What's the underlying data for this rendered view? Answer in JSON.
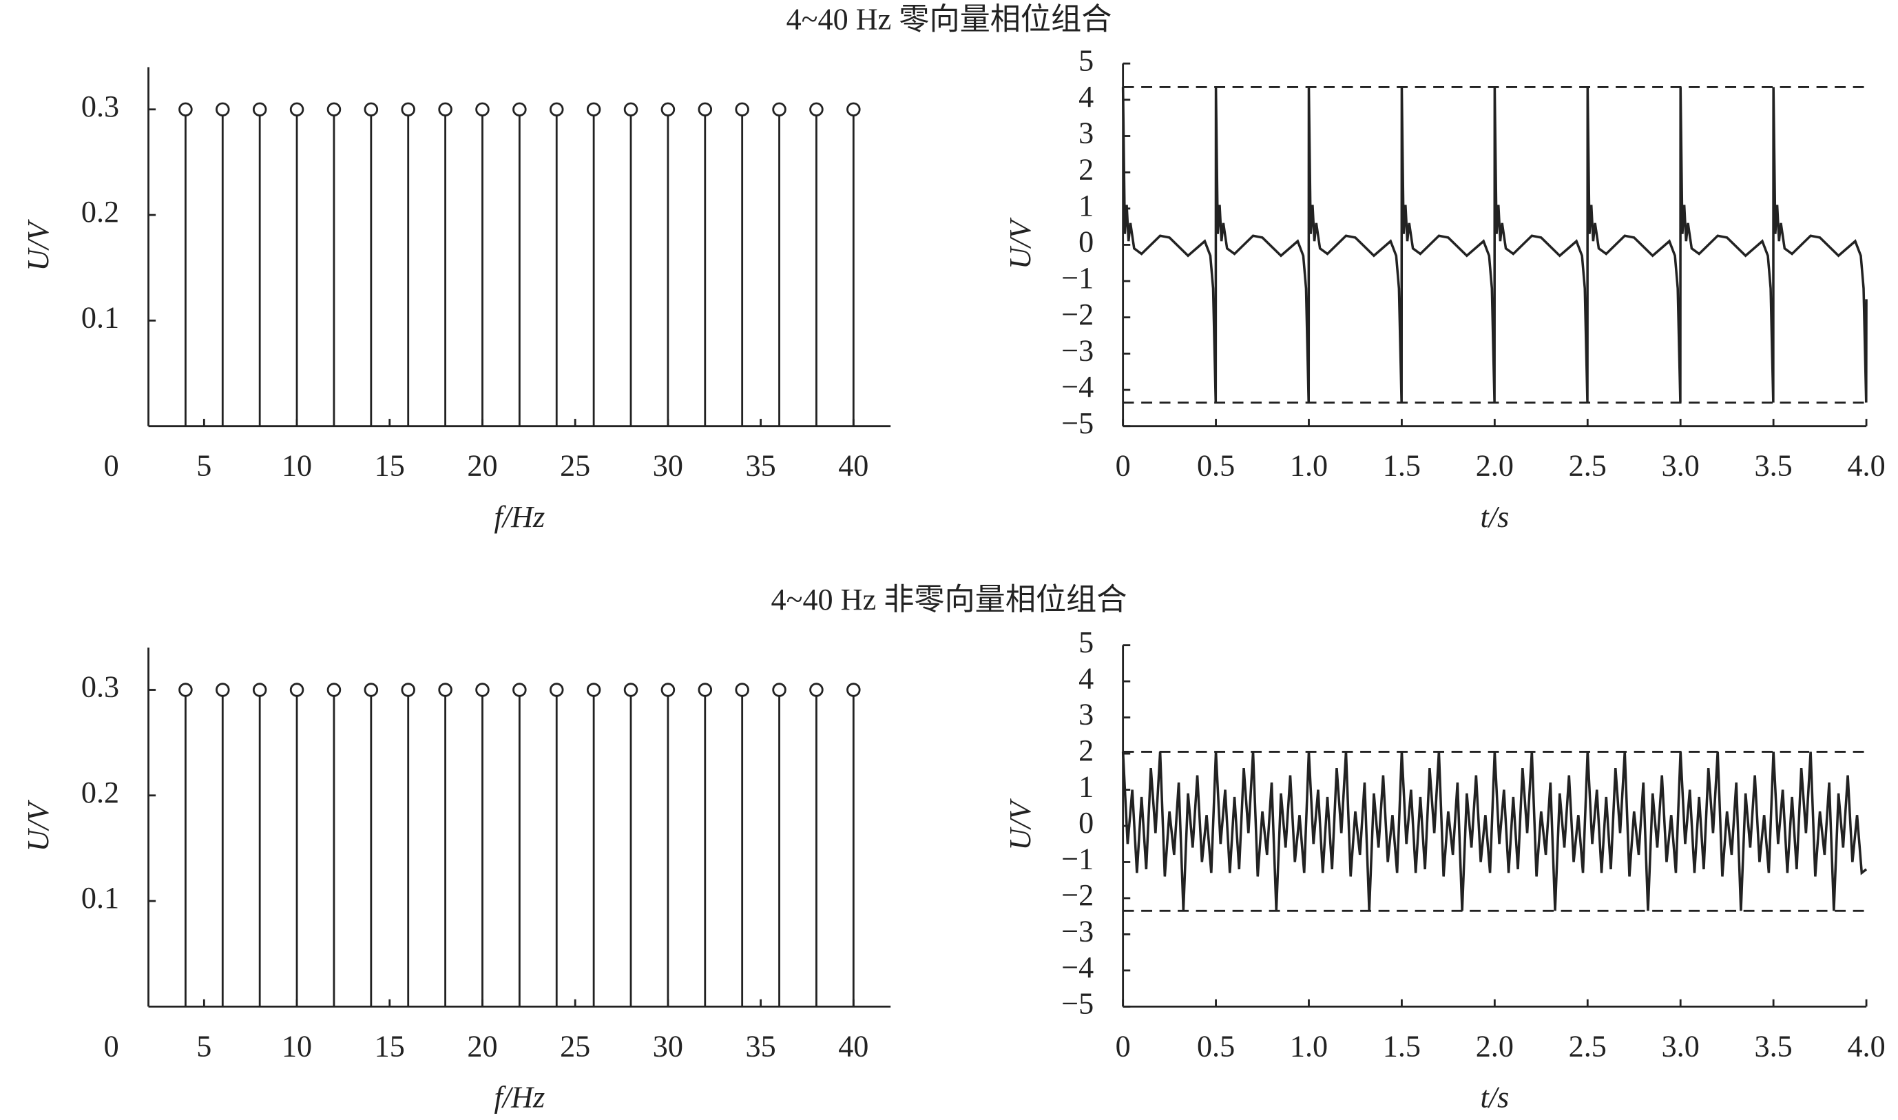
{
  "chart_data": [
    {
      "type": "stem",
      "title": "4~40 Hz 零向量相位组合",
      "xlabel": "f/Hz",
      "ylabel": "U/V",
      "color": "#222222",
      "x": [
        4,
        6,
        8,
        10,
        12,
        14,
        16,
        18,
        20,
        22,
        24,
        26,
        28,
        30,
        32,
        34,
        36,
        38,
        40
      ],
      "values": [
        0.3,
        0.3,
        0.3,
        0.3,
        0.3,
        0.3,
        0.3,
        0.3,
        0.3,
        0.3,
        0.3,
        0.3,
        0.3,
        0.3,
        0.3,
        0.3,
        0.3,
        0.3,
        0.3
      ],
      "xlim": [
        2,
        42
      ],
      "xticks": [
        0,
        5,
        10,
        15,
        20,
        25,
        30,
        35,
        40
      ],
      "ylim": [
        0,
        0.34
      ],
      "yticks": [
        0.1,
        0.2,
        0.3
      ]
    },
    {
      "type": "line",
      "xlabel": "t/s",
      "ylabel": "U/V",
      "color": "#222222",
      "x": [
        0,
        0.01,
        0.02,
        0.03,
        0.04,
        0.06,
        0.1,
        0.2,
        0.25,
        0.35,
        0.44,
        0.47,
        0.485,
        0.499,
        0.5,
        0.51,
        0.52,
        0.53,
        0.54,
        0.56,
        0.6,
        0.7,
        0.75,
        0.85,
        0.94,
        0.97,
        0.985,
        0.999,
        1,
        1.01,
        1.02,
        1.03,
        1.04,
        1.06,
        1.1,
        1.2,
        1.25,
        1.35,
        1.44,
        1.47,
        1.485,
        1.499,
        1.5,
        1.51,
        1.52,
        1.53,
        1.54,
        1.56,
        1.6,
        1.7,
        1.75,
        1.85,
        1.94,
        1.97,
        1.985,
        1.999,
        2,
        2.01,
        2.02,
        2.03,
        2.04,
        2.06,
        2.1,
        2.2,
        2.25,
        2.35,
        2.44,
        2.47,
        2.485,
        2.499,
        2.5,
        2.51,
        2.52,
        2.53,
        2.54,
        2.56,
        2.6,
        2.7,
        2.75,
        2.85,
        2.94,
        2.97,
        2.985,
        2.999,
        3,
        3.01,
        3.02,
        3.03,
        3.04,
        3.06,
        3.1,
        3.2,
        3.25,
        3.35,
        3.44,
        3.47,
        3.485,
        3.499,
        3.5,
        3.51,
        3.52,
        3.53,
        3.54,
        3.56,
        3.6,
        3.7,
        3.75,
        3.85,
        3.94,
        3.97,
        3.985,
        3.999,
        4
      ],
      "values": [
        4.35,
        0.3,
        1.1,
        0.1,
        0.6,
        -0.1,
        -0.25,
        0.25,
        0.2,
        -0.3,
        0.1,
        -0.3,
        -1.2,
        -4.35,
        4.35,
        0.3,
        1.1,
        0.1,
        0.6,
        -0.1,
        -0.25,
        0.25,
        0.2,
        -0.3,
        0.1,
        -0.3,
        -1.2,
        -4.35,
        4.35,
        0.3,
        1.1,
        0.1,
        0.6,
        -0.1,
        -0.25,
        0.25,
        0.2,
        -0.3,
        0.1,
        -0.3,
        -1.2,
        -4.35,
        4.35,
        0.3,
        1.1,
        0.1,
        0.6,
        -0.1,
        -0.25,
        0.25,
        0.2,
        -0.3,
        0.1,
        -0.3,
        -1.2,
        -4.35,
        4.35,
        0.3,
        1.1,
        0.1,
        0.6,
        -0.1,
        -0.25,
        0.25,
        0.2,
        -0.3,
        0.1,
        -0.3,
        -1.2,
        -4.35,
        4.35,
        0.3,
        1.1,
        0.1,
        0.6,
        -0.1,
        -0.25,
        0.25,
        0.2,
        -0.3,
        0.1,
        -0.3,
        -1.2,
        -4.35,
        4.35,
        0.3,
        1.1,
        0.1,
        0.6,
        -0.1,
        -0.25,
        0.25,
        0.2,
        -0.3,
        0.1,
        -0.3,
        -1.2,
        -4.35,
        4.35,
        0.3,
        1.1,
        0.1,
        0.6,
        -0.1,
        -0.25,
        0.25,
        0.2,
        -0.3,
        0.1,
        -0.3,
        -1.2,
        -4.35,
        -1.5
      ],
      "hlines": [
        4.35,
        -4.35
      ],
      "xlim": [
        0,
        4
      ],
      "xticks": [
        0,
        0.5,
        {
          "value": 1,
          "label": "1.0"
        },
        1.5,
        {
          "value": 2,
          "label": "2.0"
        },
        2.5,
        {
          "value": 3,
          "label": "3.0"
        },
        3.5,
        {
          "value": 4,
          "label": "4.0"
        }
      ],
      "ylim": [
        -5,
        5
      ],
      "yticks": [
        {
          "value": -5,
          "label": "−5"
        },
        {
          "value": -4,
          "label": "−4"
        },
        {
          "value": -3,
          "label": "−3"
        },
        {
          "value": -2,
          "label": "−2"
        },
        {
          "value": -1,
          "label": "−1"
        },
        0,
        1,
        2,
        3,
        4,
        5
      ]
    },
    {
      "type": "stem",
      "title": "4~40 Hz 非零向量相位组合",
      "xlabel": "f/Hz",
      "ylabel": "U/V",
      "color": "#222222",
      "x": [
        4,
        6,
        8,
        10,
        12,
        14,
        16,
        18,
        20,
        22,
        24,
        26,
        28,
        30,
        32,
        34,
        36,
        38,
        40
      ],
      "values": [
        0.3,
        0.3,
        0.3,
        0.3,
        0.3,
        0.3,
        0.3,
        0.3,
        0.3,
        0.3,
        0.3,
        0.3,
        0.3,
        0.3,
        0.3,
        0.3,
        0.3,
        0.3,
        0.3
      ],
      "xlim": [
        2,
        42
      ],
      "xticks": [
        0,
        5,
        10,
        15,
        20,
        25,
        30,
        35,
        40
      ],
      "ylim": [
        0,
        0.34
      ],
      "yticks": [
        0.1,
        0.2,
        0.3
      ]
    },
    {
      "type": "line",
      "xlabel": "t/s",
      "ylabel": "U/V",
      "color": "#222222",
      "x": [
        0,
        0.025,
        0.05,
        0.075,
        0.1,
        0.125,
        0.15,
        0.175,
        0.2,
        0.225,
        0.25,
        0.275,
        0.3,
        0.325,
        0.35,
        0.375,
        0.4,
        0.425,
        0.45,
        0.475,
        0.5,
        0.525,
        0.55,
        0.575,
        0.6,
        0.625,
        0.65,
        0.675,
        0.7,
        0.725,
        0.75,
        0.775,
        0.8,
        0.825,
        0.85,
        0.875,
        0.9,
        0.925,
        0.95,
        0.975,
        1,
        1.025,
        1.05,
        1.075,
        1.1,
        1.125,
        1.15,
        1.175,
        1.2,
        1.225,
        1.25,
        1.275,
        1.3,
        1.325,
        1.35,
        1.375,
        1.4,
        1.425,
        1.45,
        1.475,
        1.5,
        1.525,
        1.55,
        1.575,
        1.6,
        1.625,
        1.65,
        1.675,
        1.7,
        1.725,
        1.75,
        1.775,
        1.8,
        1.825,
        1.85,
        1.875,
        1.9,
        1.925,
        1.95,
        1.975,
        2,
        2.025,
        2.05,
        2.075,
        2.1,
        2.125,
        2.15,
        2.175,
        2.2,
        2.225,
        2.25,
        2.275,
        2.3,
        2.325,
        2.35,
        2.375,
        2.4,
        2.425,
        2.45,
        2.475,
        2.5,
        2.525,
        2.55,
        2.575,
        2.6,
        2.625,
        2.65,
        2.675,
        2.7,
        2.725,
        2.75,
        2.775,
        2.8,
        2.825,
        2.85,
        2.875,
        2.9,
        2.925,
        2.95,
        2.975,
        3,
        3.025,
        3.05,
        3.075,
        3.1,
        3.125,
        3.15,
        3.175,
        3.2,
        3.225,
        3.25,
        3.275,
        3.3,
        3.325,
        3.35,
        3.375,
        3.4,
        3.425,
        3.45,
        3.475,
        3.5,
        3.525,
        3.55,
        3.575,
        3.6,
        3.625,
        3.65,
        3.675,
        3.7,
        3.725,
        3.75,
        3.775,
        3.8,
        3.825,
        3.85,
        3.875,
        3.9,
        3.925,
        3.95,
        3.975,
        4
      ],
      "values": [
        2.05,
        -0.5,
        1.0,
        -1.3,
        0.8,
        -1.2,
        1.6,
        -0.2,
        2.05,
        -1.4,
        0.4,
        -0.8,
        1.2,
        -2.35,
        0.9,
        -0.6,
        1.4,
        -1.0,
        0.3,
        -1.3,
        2.05,
        -0.5,
        1.0,
        -1.3,
        0.8,
        -1.2,
        1.6,
        -0.2,
        2.05,
        -1.4,
        0.4,
        -0.8,
        1.2,
        -2.35,
        0.9,
        -0.6,
        1.4,
        -1.0,
        0.3,
        -1.3,
        2.05,
        -0.5,
        1.0,
        -1.3,
        0.8,
        -1.2,
        1.6,
        -0.2,
        2.05,
        -1.4,
        0.4,
        -0.8,
        1.2,
        -2.35,
        0.9,
        -0.6,
        1.4,
        -1.0,
        0.3,
        -1.3,
        2.05,
        -0.5,
        1.0,
        -1.3,
        0.8,
        -1.2,
        1.6,
        -0.2,
        2.05,
        -1.4,
        0.4,
        -0.8,
        1.2,
        -2.35,
        0.9,
        -0.6,
        1.4,
        -1.0,
        0.3,
        -1.3,
        2.05,
        -0.5,
        1.0,
        -1.3,
        0.8,
        -1.2,
        1.6,
        -0.2,
        2.05,
        -1.4,
        0.4,
        -0.8,
        1.2,
        -2.35,
        0.9,
        -0.6,
        1.4,
        -1.0,
        0.3,
        -1.3,
        2.05,
        -0.5,
        1.0,
        -1.3,
        0.8,
        -1.2,
        1.6,
        -0.2,
        2.05,
        -1.4,
        0.4,
        -0.8,
        1.2,
        -2.35,
        0.9,
        -0.6,
        1.4,
        -1.0,
        0.3,
        -1.3,
        2.05,
        -0.5,
        1.0,
        -1.3,
        0.8,
        -1.2,
        1.6,
        -0.2,
        2.05,
        -1.4,
        0.4,
        -0.8,
        1.2,
        -2.35,
        0.9,
        -0.6,
        1.4,
        -1.0,
        0.3,
        -1.3,
        2.05,
        -0.5,
        1.0,
        -1.3,
        0.8,
        -1.2,
        1.6,
        -0.2,
        2.05,
        -1.4,
        0.4,
        -0.8,
        1.2,
        -2.35,
        0.9,
        -0.6,
        1.4,
        -1.0,
        0.3,
        -1.3,
        -1.2
      ],
      "hlines": [
        2.05,
        -2.35
      ],
      "xlim": [
        0,
        4
      ],
      "xticks": [
        0,
        0.5,
        {
          "value": 1,
          "label": "1.0"
        },
        1.5,
        {
          "value": 2,
          "label": "2.0"
        },
        2.5,
        {
          "value": 3,
          "label": "3.0"
        },
        3.5,
        {
          "value": 4,
          "label": "4.0"
        }
      ],
      "ylim": [
        -5,
        5
      ],
      "yticks": [
        {
          "value": -5,
          "label": "−5"
        },
        {
          "value": -4,
          "label": "−4"
        },
        {
          "value": -3,
          "label": "−3"
        },
        {
          "value": -2,
          "label": "−2"
        },
        {
          "value": -1,
          "label": "−1"
        },
        0,
        1,
        2,
        3,
        4,
        5
      ]
    }
  ]
}
